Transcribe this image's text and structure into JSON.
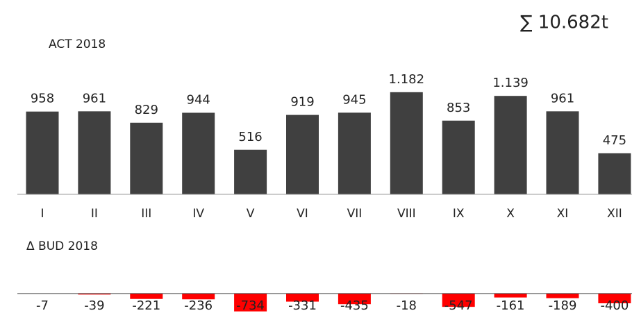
{
  "chart_data": [
    {
      "type": "bar",
      "title": "ACT 2018",
      "annotation": "∑ 10.682t",
      "categories": [
        "I",
        "II",
        "III",
        "IV",
        "V",
        "VI",
        "VII",
        "VIII",
        "IX",
        "X",
        "XI",
        "XII"
      ],
      "values": [
        958,
        961,
        829,
        944,
        516,
        919,
        945,
        1182,
        853,
        1139,
        961,
        475
      ],
      "value_labels": [
        "958",
        "961",
        "829",
        "944",
        "516",
        "919",
        "945",
        "1.182",
        "853",
        "1.139",
        "961",
        "475"
      ],
      "color": "#404040"
    },
    {
      "type": "bar",
      "title": "Δ BUD 2018",
      "values": [
        -7,
        -39,
        -221,
        -236,
        -734,
        -331,
        -435,
        -18,
        -547,
        -161,
        -189,
        -400
      ],
      "color": "#ff0000"
    }
  ]
}
